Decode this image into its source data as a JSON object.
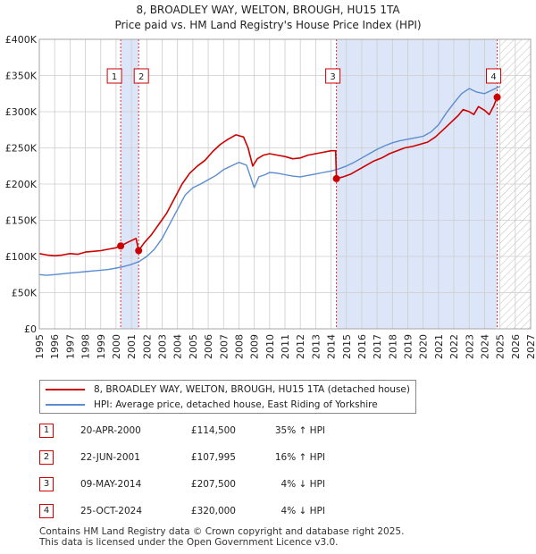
{
  "header": {
    "title_line1": "8, BROADLEY WAY, WELTON, BROUGH, HU15 1TA",
    "title_line2": "Price paid vs. HM Land Registry's House Price Index (HPI)"
  },
  "legend": {
    "red_label": "8, BROADLEY WAY, WELTON, BROUGH, HU15 1TA (detached house)",
    "blue_label": "HPI: Average price, detached house, East Riding of Yorkshire"
  },
  "transactions": [
    {
      "num": "1",
      "date": "20-APR-2000",
      "price": "£114,500",
      "delta": "35% ↑ HPI"
    },
    {
      "num": "2",
      "date": "22-JUN-2001",
      "price": "£107,995",
      "delta": "16% ↑ HPI"
    },
    {
      "num": "3",
      "date": "09-MAY-2014",
      "price": "£207,500",
      "delta": "4% ↓ HPI"
    },
    {
      "num": "4",
      "date": "25-OCT-2024",
      "price": "£320,000",
      "delta": "4% ↓ HPI"
    }
  ],
  "footer": {
    "line1": "Contains HM Land Registry data © Crown copyright and database right 2025.",
    "line2": "This data is licensed under the Open Government Licence v3.0."
  },
  "colors": {
    "property_line": "#cc0000",
    "hpi_line": "#5b8ccf",
    "highlight": "#dde6f8",
    "grid": "#cccccc"
  },
  "chart_data": {
    "type": "line",
    "title": "Price paid vs. HM Land Registry's House Price Index (HPI)",
    "xlim": [
      1995,
      2027
    ],
    "ylim": [
      0,
      400000
    ],
    "x_ticks": [
      "1995",
      "1996",
      "1997",
      "1998",
      "1999",
      "2000",
      "2001",
      "2002",
      "2003",
      "2004",
      "2005",
      "2006",
      "2007",
      "2008",
      "2009",
      "2010",
      "2011",
      "2012",
      "2013",
      "2014",
      "2015",
      "2016",
      "2017",
      "2018",
      "2019",
      "2020",
      "2021",
      "2022",
      "2023",
      "2024",
      "2025",
      "2026",
      "2027"
    ],
    "y_ticks": [
      {
        "value": 0,
        "label": "£0"
      },
      {
        "value": 50000,
        "label": "£50K"
      },
      {
        "value": 100000,
        "label": "£100K"
      },
      {
        "value": 150000,
        "label": "£150K"
      },
      {
        "value": 200000,
        "label": "£200K"
      },
      {
        "value": 250000,
        "label": "£250K"
      },
      {
        "value": 300000,
        "label": "£300K"
      },
      {
        "value": 350000,
        "label": "£350K"
      },
      {
        "value": 400000,
        "label": "£400K"
      }
    ],
    "highlight_spans": [
      [
        2000.3,
        2001.47
      ],
      [
        2014.35,
        2024.82
      ]
    ],
    "forecast_start": 2025.0,
    "series": [
      {
        "name": "8, BROADLEY WAY, WELTON, BROUGH, HU15 1TA (detached house)",
        "x": [
          1995.0,
          1995.5,
          1996.0,
          1996.5,
          1997.0,
          1997.5,
          1998.0,
          1998.5,
          1999.0,
          1999.5,
          2000.0,
          2000.3,
          2000.8,
          2001.3,
          2001.47,
          2001.8,
          2002.3,
          2002.8,
          2003.3,
          2003.8,
          2004.3,
          2004.8,
          2005.3,
          2005.8,
          2006.3,
          2006.8,
          2007.3,
          2007.8,
          2008.3,
          2008.6,
          2008.9,
          2009.2,
          2009.6,
          2010.0,
          2010.5,
          2011.0,
          2011.5,
          2012.0,
          2012.5,
          2013.0,
          2013.5,
          2014.0,
          2014.3,
          2014.35,
          2014.8,
          2015.3,
          2015.8,
          2016.3,
          2016.8,
          2017.3,
          2017.8,
          2018.3,
          2018.8,
          2019.3,
          2019.8,
          2020.3,
          2020.8,
          2021.3,
          2021.8,
          2022.3,
          2022.6,
          2023.0,
          2023.3,
          2023.6,
          2024.0,
          2024.3,
          2024.6,
          2024.82,
          2025.0
        ],
        "values": [
          104000,
          102000,
          101000,
          102000,
          104000,
          103000,
          106000,
          107000,
          108000,
          110000,
          112000,
          114500,
          120000,
          125000,
          107995,
          118000,
          130000,
          145000,
          160000,
          180000,
          200000,
          215000,
          225000,
          233000,
          245000,
          255000,
          262000,
          268000,
          265000,
          250000,
          225000,
          235000,
          240000,
          242000,
          240000,
          238000,
          235000,
          236000,
          240000,
          242000,
          244000,
          246000,
          246000,
          207500,
          210000,
          214000,
          220000,
          226000,
          232000,
          236000,
          242000,
          246000,
          250000,
          252000,
          255000,
          258000,
          265000,
          275000,
          285000,
          295000,
          303000,
          300000,
          296000,
          307000,
          302000,
          296000,
          308000,
          320000,
          322000
        ]
      },
      {
        "name": "HPI: Average price, detached house, East Riding of Yorkshire",
        "x": [
          1995.0,
          1995.5,
          1996.0,
          1996.5,
          1997.0,
          1997.5,
          1998.0,
          1998.5,
          1999.0,
          1999.5,
          2000.0,
          2000.5,
          2001.0,
          2001.5,
          2002.0,
          2002.5,
          2003.0,
          2003.5,
          2004.0,
          2004.5,
          2005.0,
          2005.5,
          2006.0,
          2006.5,
          2007.0,
          2007.5,
          2008.0,
          2008.5,
          2009.0,
          2009.3,
          2009.7,
          2010.0,
          2010.5,
          2011.0,
          2011.5,
          2012.0,
          2012.5,
          2013.0,
          2013.5,
          2014.0,
          2014.5,
          2015.0,
          2015.5,
          2016.0,
          2016.5,
          2017.0,
          2017.5,
          2018.0,
          2018.5,
          2019.0,
          2019.5,
          2020.0,
          2020.5,
          2021.0,
          2021.5,
          2022.0,
          2022.5,
          2023.0,
          2023.5,
          2024.0,
          2024.5,
          2025.0
        ],
        "values": [
          75000,
          74000,
          75000,
          76000,
          77000,
          78000,
          79000,
          80000,
          81000,
          82000,
          84000,
          86000,
          89000,
          93000,
          100000,
          110000,
          125000,
          145000,
          165000,
          185000,
          195000,
          200000,
          206000,
          212000,
          220000,
          225000,
          230000,
          226000,
          195000,
          210000,
          213000,
          216000,
          215000,
          213000,
          211000,
          210000,
          212000,
          214000,
          216000,
          218000,
          221000,
          225000,
          230000,
          236000,
          242000,
          248000,
          253000,
          257000,
          260000,
          262000,
          264000,
          266000,
          272000,
          282000,
          298000,
          312000,
          325000,
          332000,
          327000,
          325000,
          330000,
          335000
        ]
      }
    ],
    "markers": [
      {
        "label": "1",
        "x": 2000.3,
        "value": 114500
      },
      {
        "label": "2",
        "x": 2001.47,
        "value": 107995
      },
      {
        "label": "3",
        "x": 2014.35,
        "value": 207500
      },
      {
        "label": "4",
        "x": 2024.82,
        "value": 320000
      }
    ]
  }
}
